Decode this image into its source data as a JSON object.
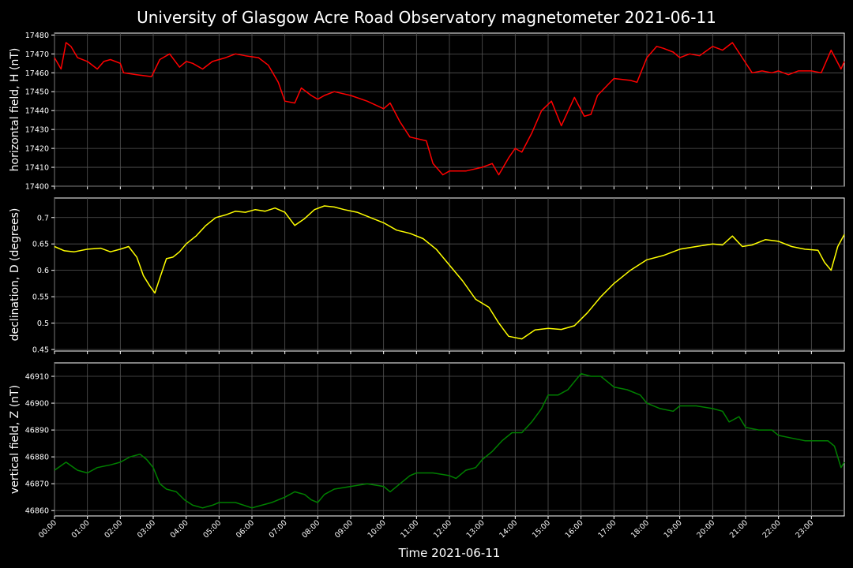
{
  "title": "University of Glasgow Acre Road Observatory magnetometer 2021-06-11",
  "x_axis": {
    "label": "Time 2021-06-11",
    "ticks": [
      "00:00",
      "01:00",
      "02:00",
      "03:00",
      "04:00",
      "05:00",
      "06:00",
      "07:00",
      "08:00",
      "09:00",
      "10:00",
      "11:00",
      "12:00",
      "13:00",
      "14:00",
      "15:00",
      "16:00",
      "17:00",
      "18:00",
      "19:00",
      "20:00",
      "21:00",
      "22:00",
      "23:00"
    ],
    "range_hours": [
      0,
      24
    ]
  },
  "chart_data": [
    {
      "type": "line",
      "name": "H",
      "ylabel": "horizontal field, H (nT)",
      "color": "#ff0000",
      "ylim": [
        17400,
        17481
      ],
      "yticks": [
        17400,
        17410,
        17420,
        17430,
        17440,
        17450,
        17460,
        17470,
        17480
      ],
      "grid": true,
      "x": [
        0,
        0.2,
        0.35,
        0.5,
        0.7,
        1.0,
        1.3,
        1.5,
        1.7,
        2.0,
        2.1,
        2.5,
        2.95,
        3.2,
        3.5,
        3.8,
        4.0,
        4.2,
        4.5,
        4.8,
        5.2,
        5.5,
        5.8,
        6.2,
        6.5,
        6.8,
        7.0,
        7.3,
        7.5,
        7.8,
        8.0,
        8.2,
        8.5,
        9.0,
        9.5,
        10.0,
        10.2,
        10.5,
        10.8,
        11.3,
        11.5,
        11.8,
        12.0,
        12.5,
        13.0,
        13.3,
        13.5,
        13.8,
        14.0,
        14.2,
        14.5,
        14.8,
        15.1,
        15.4,
        15.8,
        16.1,
        16.3,
        16.5,
        17.0,
        17.5,
        17.7,
        18.0,
        18.3,
        18.5,
        18.8,
        19.0,
        19.3,
        19.6,
        20.0,
        20.3,
        20.6,
        20.9,
        21.2,
        21.5,
        21.8,
        22.0,
        22.3,
        22.6,
        23.0,
        23.3,
        23.6,
        23.9,
        24.0
      ],
      "values": [
        17468,
        17462,
        17476,
        17474,
        17468,
        17466,
        17462,
        17466,
        17467,
        17465,
        17460,
        17459,
        17458,
        17467,
        17470,
        17463,
        17466,
        17465,
        17462,
        17466,
        17468,
        17470,
        17469,
        17468,
        17464,
        17455,
        17445,
        17444,
        17452,
        17448,
        17446,
        17448,
        17450,
        17448,
        17445,
        17441,
        17444,
        17434,
        17426,
        17424,
        17412,
        17406,
        17408,
        17408,
        17410,
        17412,
        17406,
        17415,
        17420,
        17418,
        17428,
        17440,
        17445,
        17432,
        17447,
        17437,
        17438,
        17448,
        17457,
        17456,
        17455,
        17468,
        17474,
        17473,
        17471,
        17468,
        17470,
        17469,
        17474,
        17472,
        17476,
        17468,
        17460,
        17461,
        17460,
        17461,
        17459,
        17461,
        17461,
        17460,
        17472,
        17462,
        17466
      ]
    },
    {
      "type": "line",
      "name": "D",
      "ylabel": "declination, D (degrees)",
      "color": "#ffff00",
      "ylim": [
        0.447,
        0.737
      ],
      "yticks": [
        0.45,
        0.5,
        0.55,
        0.6,
        0.65,
        0.7
      ],
      "grid": true,
      "x": [
        0,
        0.3,
        0.6,
        1.0,
        1.4,
        1.7,
        2.0,
        2.25,
        2.5,
        2.7,
        2.9,
        3.05,
        3.2,
        3.4,
        3.6,
        3.8,
        4.0,
        4.3,
        4.6,
        4.9,
        5.2,
        5.5,
        5.8,
        6.1,
        6.4,
        6.7,
        7.0,
        7.3,
        7.6,
        7.9,
        8.2,
        8.5,
        8.8,
        9.2,
        9.6,
        10.0,
        10.4,
        10.8,
        11.2,
        11.6,
        12.0,
        12.4,
        12.8,
        13.2,
        13.5,
        13.8,
        14.2,
        14.6,
        15.0,
        15.4,
        15.8,
        16.2,
        16.6,
        17.0,
        17.5,
        18.0,
        18.5,
        19.0,
        19.5,
        20.0,
        20.3,
        20.6,
        20.9,
        21.2,
        21.6,
        22.0,
        22.4,
        22.8,
        23.2,
        23.4,
        23.6,
        23.8,
        24.0
      ],
      "values": [
        0.645,
        0.637,
        0.635,
        0.64,
        0.642,
        0.635,
        0.64,
        0.645,
        0.625,
        0.59,
        0.57,
        0.557,
        0.585,
        0.622,
        0.625,
        0.635,
        0.65,
        0.665,
        0.685,
        0.7,
        0.705,
        0.712,
        0.71,
        0.715,
        0.712,
        0.718,
        0.71,
        0.685,
        0.698,
        0.715,
        0.722,
        0.72,
        0.715,
        0.71,
        0.7,
        0.69,
        0.676,
        0.67,
        0.66,
        0.64,
        0.61,
        0.58,
        0.545,
        0.53,
        0.5,
        0.475,
        0.47,
        0.487,
        0.49,
        0.488,
        0.495,
        0.52,
        0.55,
        0.575,
        0.6,
        0.62,
        0.628,
        0.64,
        0.645,
        0.65,
        0.648,
        0.665,
        0.645,
        0.648,
        0.658,
        0.655,
        0.645,
        0.64,
        0.638,
        0.615,
        0.6,
        0.645,
        0.668
      ]
    },
    {
      "type": "line",
      "name": "Z",
      "ylabel": "vertical field, Z (nT)",
      "color": "#008000",
      "ylim": [
        46858,
        46915
      ],
      "yticks": [
        46860,
        46870,
        46880,
        46890,
        46900,
        46910
      ],
      "grid": true,
      "x": [
        0,
        0.35,
        0.7,
        1.0,
        1.3,
        1.7,
        2.0,
        2.3,
        2.6,
        2.8,
        3.0,
        3.2,
        3.4,
        3.7,
        3.95,
        4.2,
        4.5,
        4.8,
        5.0,
        5.5,
        6.0,
        6.3,
        6.6,
        7.0,
        7.3,
        7.6,
        7.8,
        8.0,
        8.2,
        8.5,
        9.0,
        9.5,
        10.0,
        10.2,
        10.5,
        10.8,
        11.0,
        11.5,
        12.0,
        12.2,
        12.5,
        12.8,
        13.0,
        13.3,
        13.6,
        13.9,
        14.2,
        14.5,
        14.8,
        15.0,
        15.3,
        15.6,
        15.8,
        16.0,
        16.3,
        16.6,
        17.0,
        17.4,
        17.8,
        18.0,
        18.4,
        18.8,
        19.0,
        19.5,
        20.0,
        20.3,
        20.5,
        20.8,
        21.0,
        21.4,
        21.8,
        22.0,
        22.4,
        22.8,
        23.2,
        23.5,
        23.7,
        23.9,
        24.0
      ],
      "values": [
        46875,
        46878,
        46875,
        46874,
        46876,
        46877,
        46878,
        46880,
        46881,
        46879,
        46876,
        46870,
        46868,
        46867,
        46864,
        46862,
        46861,
        46862,
        46863,
        46863,
        46861,
        46862,
        46863,
        46865,
        46867,
        46866,
        46864,
        46863,
        46866,
        46868,
        46869,
        46870,
        46869,
        46867,
        46870,
        46873,
        46874,
        46874,
        46873,
        46872,
        46875,
        46876,
        46879,
        46882,
        46886,
        46889,
        46889,
        46893,
        46898,
        46903,
        46903,
        46905,
        46908,
        46911,
        46910,
        46910,
        46906,
        46905,
        46903,
        46900,
        46898,
        46897,
        46899,
        46899,
        46898,
        46897,
        46893,
        46895,
        46891,
        46890,
        46890,
        46888,
        46887,
        46886,
        46886,
        46886,
        46884,
        46876,
        46878
      ]
    }
  ]
}
